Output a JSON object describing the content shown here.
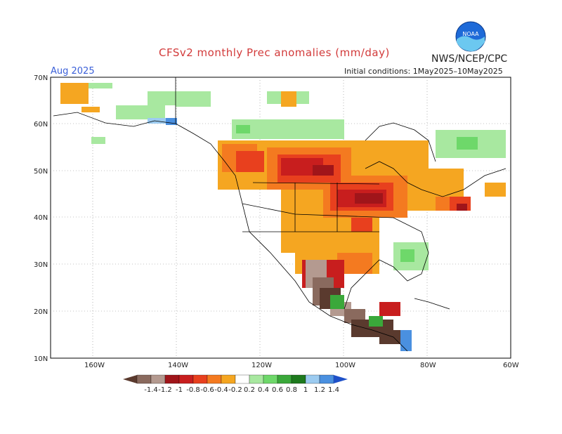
{
  "header": {
    "title": "CFSv2 monthly Prec anomalies (mm/day)",
    "month": "Aug 2025",
    "initial_conditions": "Initial conditions: 1May2025–10May2025",
    "agency": "NWS/NCEP/CPC",
    "logo_text": "NOAA"
  },
  "axes": {
    "lat_labels": [
      "70N",
      "60N",
      "50N",
      "40N",
      "30N",
      "20N",
      "10N"
    ],
    "lon_labels": [
      "160W",
      "140W",
      "120W",
      "100W",
      "80W",
      "60W"
    ]
  },
  "colorbar": {
    "labels": [
      "-1.4",
      "-1.2",
      "-1",
      "-0.8",
      "-0.6",
      "-0.4",
      "-0.2",
      "0.2",
      "0.4",
      "0.6",
      "0.8",
      "1",
      "1.2",
      "1.4"
    ],
    "colors": [
      "#5a3a2e",
      "#8a6a5e",
      "#b49a90",
      "#a0151a",
      "#c81e1e",
      "#e8401e",
      "#f47a20",
      "#f5a621",
      "#ffffff",
      "#a8e8a0",
      "#6ed86a",
      "#3aa83a",
      "#1e7a1e",
      "#9ccbf0",
      "#4a90e0",
      "#1e50c8"
    ]
  }
}
